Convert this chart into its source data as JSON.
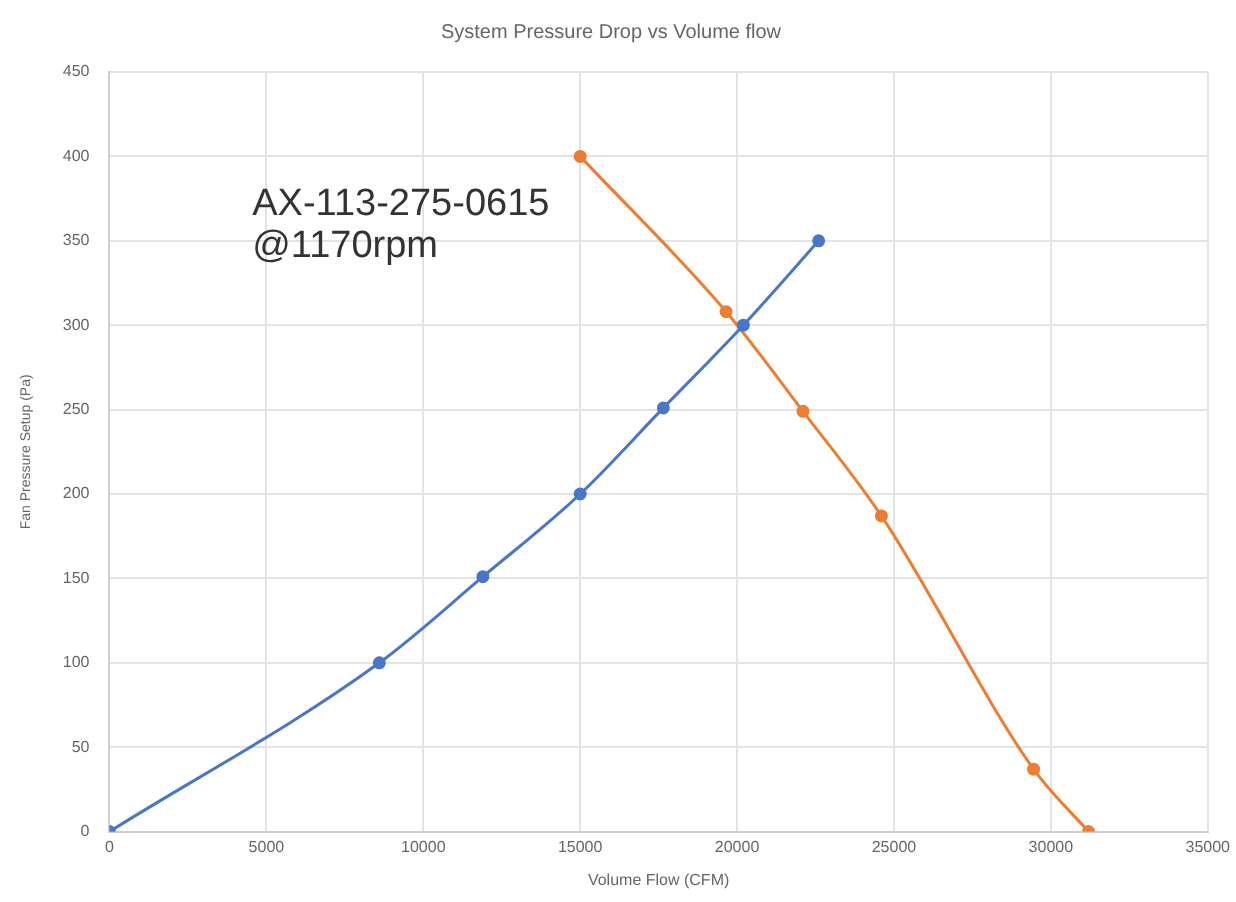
{
  "chart_data": {
    "type": "line",
    "title": "System Pressure Drop vs Volume flow",
    "xlabel": "Volume Flow (CFM)",
    "ylabel": "Fan Pressure Setup (Pa)",
    "annotations": [
      "AX-113-275-0615\n@1170rpm"
    ],
    "series": [
      {
        "color": "#4a76c6",
        "x": [
          0,
          8600,
          11900,
          15000,
          17650,
          20200,
          22600
        ],
        "values": [
          0,
          100,
          151,
          200,
          251,
          300,
          350
        ]
      },
      {
        "color": "#ed7d31",
        "x": [
          15000,
          19650,
          22100,
          24600,
          29450,
          31200
        ],
        "values": [
          400,
          308,
          249,
          187,
          37,
          0
        ]
      }
    ],
    "xlim": [
      0,
      35000
    ],
    "xticks": [
      0,
      5000,
      10000,
      15000,
      20000,
      25000,
      30000,
      35000
    ],
    "ylim": [
      0,
      450
    ],
    "yticks": [
      0,
      50,
      100,
      150,
      200,
      250,
      300,
      350,
      400,
      450
    ],
    "grid": true,
    "legend": false,
    "marker": "circle",
    "line_style": "solid"
  }
}
